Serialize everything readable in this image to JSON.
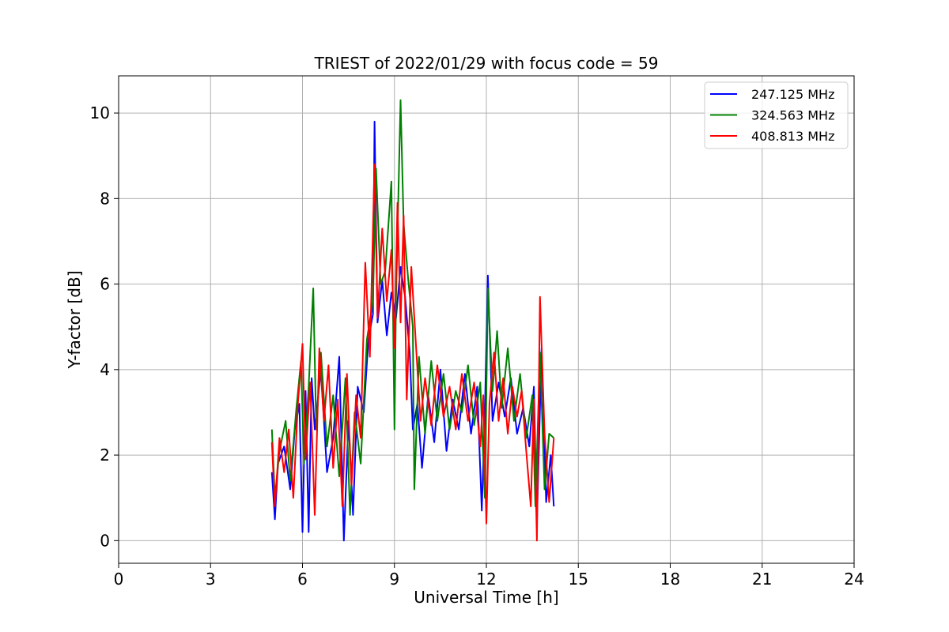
{
  "chart_data": {
    "type": "line",
    "title": "TRIEST of 2022/01/29 with focus code = 59",
    "xlabel": "Universal Time [h]",
    "ylabel": "Y-factor [dB]",
    "xlim": [
      0,
      24
    ],
    "ylim": [
      -0.53,
      10.87
    ],
    "xticks": [
      0,
      3,
      6,
      9,
      12,
      15,
      18,
      21,
      24
    ],
    "yticks": [
      0,
      2,
      4,
      6,
      8,
      10
    ],
    "grid": true,
    "legend_position": "top-right",
    "series": [
      {
        "name": "247.125 MHz",
        "color": "#0000ff",
        "x": [
          5.0,
          5.1,
          5.2,
          5.4,
          5.6,
          5.75,
          5.9,
          6.0,
          6.1,
          6.2,
          6.3,
          6.4,
          6.6,
          6.8,
          7.0,
          7.2,
          7.35,
          7.5,
          7.65,
          7.8,
          8.0,
          8.15,
          8.3,
          8.35,
          8.45,
          8.6,
          8.75,
          8.9,
          9.05,
          9.2,
          9.35,
          9.5,
          9.6,
          9.75,
          9.9,
          10.1,
          10.3,
          10.5,
          10.7,
          10.9,
          11.1,
          11.3,
          11.5,
          11.7,
          11.85,
          11.95,
          12.05,
          12.2,
          12.4,
          12.6,
          12.8,
          13.0,
          13.2,
          13.4,
          13.55,
          13.65,
          13.8,
          13.95,
          14.1,
          14.2
        ],
        "y": [
          1.6,
          0.5,
          1.8,
          2.2,
          1.2,
          2.6,
          3.2,
          0.2,
          3.5,
          0.2,
          3.8,
          2.6,
          4.0,
          1.6,
          2.4,
          4.3,
          0.0,
          2.8,
          0.6,
          3.6,
          3.0,
          4.7,
          5.3,
          9.8,
          5.1,
          6.1,
          4.8,
          5.8,
          5.2,
          6.4,
          5.7,
          4.4,
          2.6,
          3.2,
          1.7,
          3.4,
          2.3,
          4.0,
          2.1,
          3.3,
          2.6,
          3.9,
          2.5,
          3.6,
          0.7,
          3.0,
          6.2,
          2.8,
          3.7,
          2.9,
          3.8,
          2.5,
          3.1,
          2.2,
          3.6,
          0.4,
          4.5,
          0.9,
          2.0,
          0.8
        ]
      },
      {
        "name": "324.563 MHz",
        "color": "#008000",
        "x": [
          5.0,
          5.1,
          5.25,
          5.45,
          5.6,
          5.8,
          5.95,
          6.05,
          6.2,
          6.35,
          6.45,
          6.6,
          6.8,
          7.0,
          7.2,
          7.4,
          7.55,
          7.7,
          7.9,
          8.1,
          8.3,
          8.4,
          8.55,
          8.7,
          8.9,
          9.0,
          9.05,
          9.2,
          9.3,
          9.45,
          9.6,
          9.65,
          9.8,
          10.0,
          10.2,
          10.4,
          10.6,
          10.8,
          11.0,
          11.2,
          11.4,
          11.6,
          11.8,
          11.95,
          12.05,
          12.2,
          12.35,
          12.5,
          12.7,
          12.9,
          13.1,
          13.3,
          13.5,
          13.6,
          13.75,
          13.9,
          14.05,
          14.2
        ],
        "y": [
          2.6,
          1.0,
          2.1,
          2.8,
          1.4,
          3.1,
          4.2,
          1.8,
          3.6,
          5.9,
          2.6,
          4.4,
          2.2,
          3.4,
          1.5,
          3.8,
          0.6,
          3.0,
          1.8,
          4.7,
          5.6,
          8.7,
          6.0,
          6.3,
          8.4,
          2.6,
          5.6,
          10.3,
          7.4,
          6.1,
          5.0,
          1.2,
          4.3,
          2.5,
          4.2,
          2.8,
          3.9,
          2.6,
          3.5,
          3.0,
          4.1,
          2.7,
          3.7,
          1.0,
          5.9,
          3.5,
          4.9,
          3.1,
          4.5,
          2.8,
          3.9,
          2.4,
          3.4,
          0.8,
          4.4,
          1.2,
          2.5,
          2.4
        ]
      },
      {
        "name": "408.813 MHz",
        "color": "#ff0000",
        "x": [
          5.0,
          5.1,
          5.25,
          5.4,
          5.55,
          5.7,
          5.85,
          6.0,
          6.1,
          6.25,
          6.4,
          6.55,
          6.7,
          6.85,
          7.0,
          7.15,
          7.3,
          7.45,
          7.6,
          7.75,
          7.9,
          8.05,
          8.2,
          8.35,
          8.45,
          8.6,
          8.75,
          8.9,
          9.0,
          9.1,
          9.2,
          9.3,
          9.4,
          9.55,
          9.7,
          9.85,
          10.0,
          10.2,
          10.4,
          10.6,
          10.8,
          11.0,
          11.2,
          11.4,
          11.6,
          11.8,
          11.9,
          12.0,
          12.1,
          12.25,
          12.4,
          12.55,
          12.7,
          12.85,
          13.0,
          13.15,
          13.3,
          13.45,
          13.55,
          13.65,
          13.75,
          13.9,
          14.05,
          14.2
        ],
        "y": [
          2.3,
          0.8,
          2.4,
          1.6,
          2.6,
          1.0,
          3.2,
          4.6,
          1.9,
          3.7,
          0.6,
          4.5,
          2.8,
          4.1,
          1.7,
          3.3,
          0.8,
          3.9,
          1.3,
          3.4,
          2.4,
          6.5,
          4.3,
          8.8,
          5.2,
          7.3,
          5.6,
          6.8,
          4.5,
          7.9,
          5.1,
          7.6,
          3.3,
          6.4,
          4.6,
          2.8,
          3.8,
          2.7,
          4.1,
          2.9,
          3.6,
          2.6,
          3.9,
          2.8,
          3.7,
          2.2,
          3.4,
          0.4,
          3.2,
          4.4,
          2.8,
          3.8,
          2.5,
          3.6,
          2.9,
          3.5,
          2.1,
          0.8,
          3.3,
          0.0,
          5.7,
          2.5,
          0.9,
          2.4
        ]
      }
    ]
  }
}
